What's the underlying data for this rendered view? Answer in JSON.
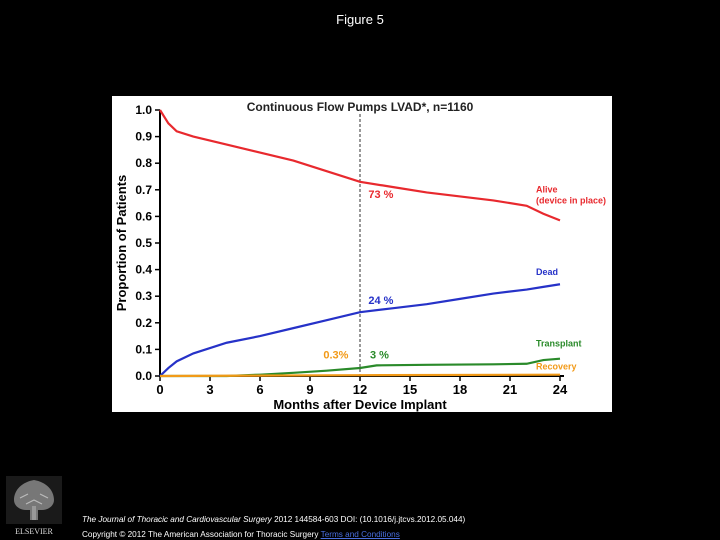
{
  "figure": {
    "title": "Figure 5"
  },
  "chart_data": {
    "type": "line",
    "title": "Continuous Flow Pumps LVAD*, n=1160",
    "xlabel": "Months after Device Implant",
    "ylabel": "Proportion of Patients",
    "xlim": [
      0,
      24
    ],
    "ylim": [
      0,
      1.0
    ],
    "xticks": [
      0,
      3,
      6,
      9,
      12,
      15,
      18,
      21,
      24
    ],
    "xtick_labels": [
      "0",
      "3",
      "6",
      "9",
      "12",
      "15",
      "18",
      "21",
      "24"
    ],
    "yticks": [
      0,
      0.1,
      0.2,
      0.3,
      0.4,
      0.5,
      0.6,
      0.7,
      0.8,
      0.9,
      1.0
    ],
    "ytick_labels": [
      "0.0",
      "0.1",
      "0.2",
      "0.3",
      "0.4",
      "0.5",
      "0.6",
      "0.7",
      "0.8",
      "0.9",
      "1.0"
    ],
    "reference_line": {
      "x": 12,
      "style": "dashed"
    },
    "series": [
      {
        "name": "Alive (device in place)",
        "color": "#e8292e",
        "x": [
          0,
          0.5,
          1,
          2,
          3,
          4,
          6,
          8,
          10,
          12,
          14,
          16,
          18,
          20,
          22,
          23,
          24
        ],
        "y": [
          1.0,
          0.95,
          0.92,
          0.9,
          0.885,
          0.87,
          0.84,
          0.81,
          0.77,
          0.73,
          0.71,
          0.69,
          0.675,
          0.66,
          0.64,
          0.61,
          0.585
        ]
      },
      {
        "name": "Dead",
        "color": "#2632c8",
        "x": [
          0,
          0.5,
          1,
          2,
          3,
          4,
          6,
          8,
          10,
          12,
          14,
          16,
          18,
          20,
          22,
          23,
          24
        ],
        "y": [
          0.0,
          0.03,
          0.055,
          0.085,
          0.105,
          0.125,
          0.15,
          0.18,
          0.21,
          0.24,
          0.255,
          0.27,
          0.29,
          0.31,
          0.325,
          0.335,
          0.345
        ]
      },
      {
        "name": "Transplant",
        "color": "#2a8a2a",
        "x": [
          0,
          4,
          6,
          8,
          10,
          12,
          13,
          16,
          20,
          22,
          23,
          24
        ],
        "y": [
          0.0,
          0.0,
          0.005,
          0.012,
          0.02,
          0.03,
          0.04,
          0.042,
          0.044,
          0.046,
          0.06,
          0.065
        ]
      },
      {
        "name": "Recovery",
        "color": "#f29a18",
        "x": [
          0,
          12,
          24
        ],
        "y": [
          0.0,
          0.003,
          0.005
        ]
      }
    ],
    "annotations": [
      {
        "text": "73 %",
        "x": 12.5,
        "y": 0.67,
        "color": "#e8292e"
      },
      {
        "text": "24 %",
        "x": 12.5,
        "y": 0.27,
        "color": "#2632c8"
      },
      {
        "text": "0.3%",
        "x": 9.8,
        "y": 0.065,
        "color": "#f29a18"
      },
      {
        "text": "3 %",
        "x": 12.6,
        "y": 0.065,
        "color": "#2a8a2a"
      }
    ],
    "legend_labels": [
      {
        "lines": [
          "Alive",
          "(device in place)"
        ],
        "color": "#e8292e"
      },
      {
        "lines": [
          "Dead"
        ],
        "color": "#2632c8"
      },
      {
        "lines": [
          "Transplant"
        ],
        "color": "#2a8a2a"
      },
      {
        "lines": [
          "Recovery"
        ],
        "color": "#f29a18"
      }
    ]
  },
  "footer": {
    "journal": "The Journal of Thoracic and Cardiovascular Surgery",
    "citation_rest": "2012 144584-603 DOI: (10.1016/j.jtcvs.2012.05.044)",
    "copyright": "Copyright © 2012 The American Association for Thoracic Surgery",
    "terms_link": "Terms and Conditions",
    "publisher": "ELSEVIER"
  }
}
